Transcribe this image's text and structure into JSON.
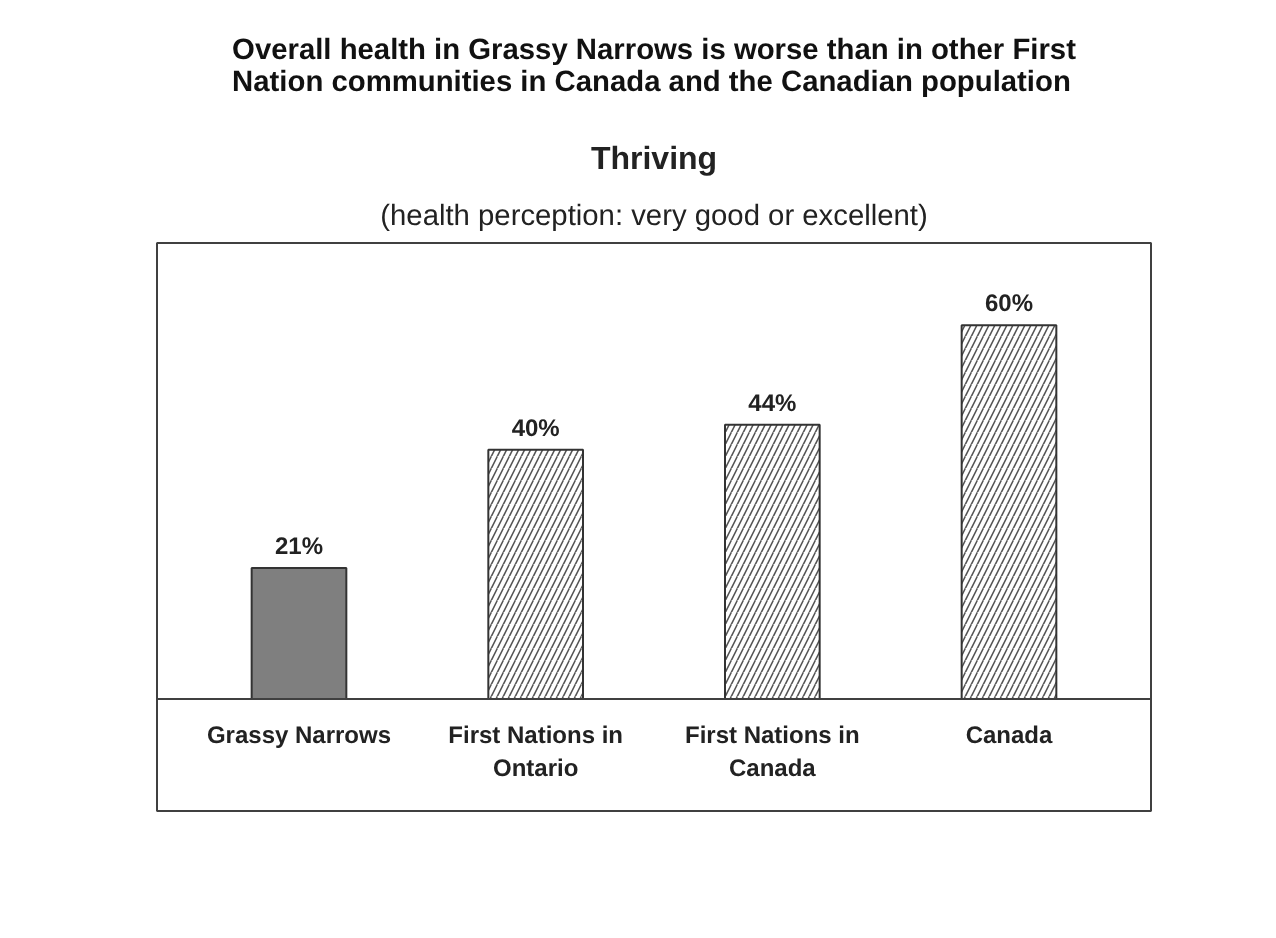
{
  "chart_data": {
    "type": "bar",
    "title": "Overall health in Grassy Narrows is worse than in other First\nNation communities in Canada and the Canadian population",
    "subtitle": "Thriving",
    "annotations": [
      "(health perception: very good or excellent)"
    ],
    "categories": [
      "Grassy Narrows",
      "First Nations in\nOntario",
      "First Nations in\nCanada",
      "Canada"
    ],
    "values": [
      21,
      40,
      44,
      60
    ],
    "colors": [
      "#7f7f7f",
      "#ffffff",
      "#ffffff",
      "#ffffff"
    ],
    "value_labels": [
      "21%",
      "40%",
      "44%",
      "60%"
    ]
  }
}
